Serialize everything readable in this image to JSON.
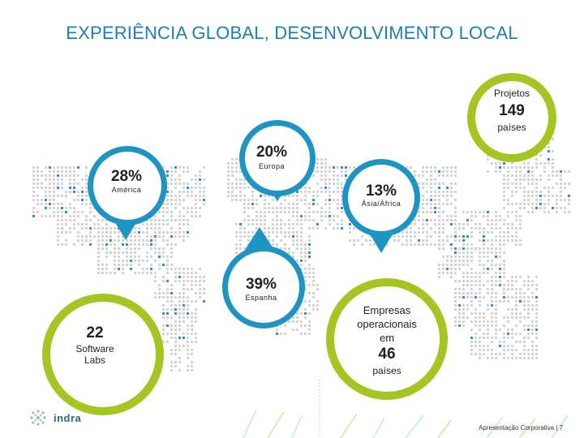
{
  "title": "EXPERIÊNCIA GLOBAL, DESENVOLVIMENTO LOCAL",
  "projects": {
    "label": "Projetos",
    "value": "149",
    "unit": "países"
  },
  "regions": {
    "europa": {
      "pct": "20%",
      "label": "Europa"
    },
    "america": {
      "pct": "28%",
      "label": "América"
    },
    "asia": {
      "pct": "13%",
      "label": "Ásia/África"
    },
    "espanha": {
      "pct": "39%",
      "label": "Espanha"
    }
  },
  "labs": {
    "value": "22",
    "label_line1": "Software",
    "label_line2": "Labs"
  },
  "companies": {
    "line1": "Empresas",
    "line2": "operacionais",
    "line3": "em",
    "value": "46",
    "unit": "países"
  },
  "footer": {
    "brand": "indra",
    "page": "Apresentação Corporativa | 7"
  },
  "colors": {
    "title": "#1b7fb4",
    "blue": "#1d94c4",
    "green": "#a4c522"
  }
}
